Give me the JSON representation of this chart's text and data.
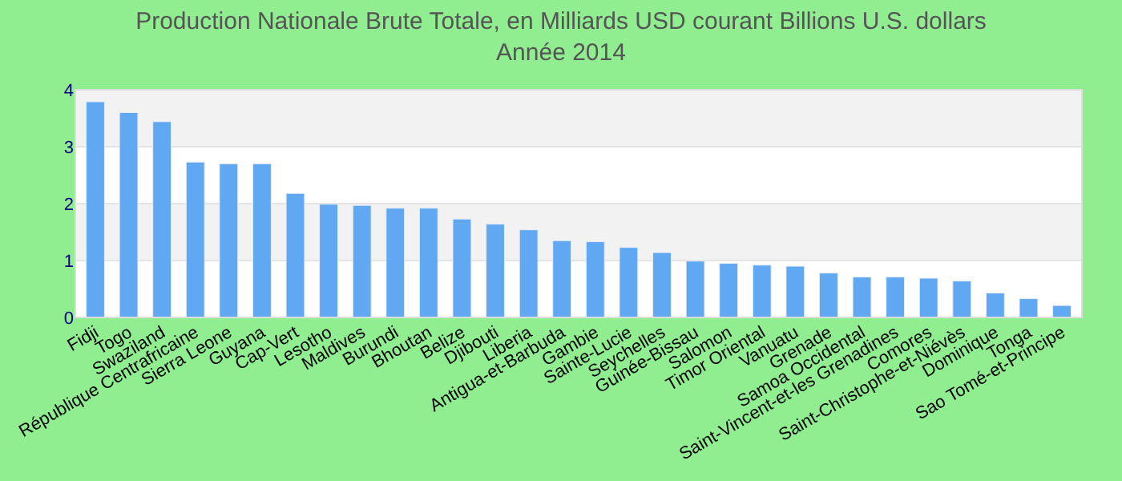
{
  "chart_data": {
    "type": "bar",
    "title": "Production Nationale Brute Totale, en Milliards USD courant Billions U.S. dollars",
    "subtitle": "Année 2014",
    "categories": [
      "Fidji",
      "Togo",
      "Swaziland",
      "République Centrafricaine",
      "Sierra Leone",
      "Guyana",
      "Cap-Vert",
      "Lesotho",
      "Maldives",
      "Burundi",
      "Bhoutan",
      "Belize",
      "Djibouti",
      "Liberia",
      "Antigua-et-Barbuda",
      "Gambie",
      "Sainte-Lucie",
      "Seychelles",
      "Guinée-Bissau",
      "Salomon",
      "Timor Oriental",
      "Vanuatu",
      "Grenade",
      "Samoa Occidental",
      "Saint-Vincent-et-les Grenadines",
      "Comores",
      "Saint-Christophe-et-Niévès",
      "Dominique",
      "Tonga",
      "Sao Tomé-et-Principe"
    ],
    "values": [
      3.79,
      3.6,
      3.44,
      2.73,
      2.7,
      2.7,
      2.18,
      1.99,
      1.97,
      1.92,
      1.92,
      1.73,
      1.64,
      1.54,
      1.35,
      1.33,
      1.23,
      1.14,
      0.99,
      0.95,
      0.92,
      0.9,
      0.78,
      0.71,
      0.71,
      0.69,
      0.64,
      0.43,
      0.33,
      0.21
    ],
    "color": "#61a8f3",
    "ylim": [
      0,
      4
    ],
    "yticks": [
      0,
      1,
      2,
      3,
      4
    ],
    "grid": "y"
  }
}
